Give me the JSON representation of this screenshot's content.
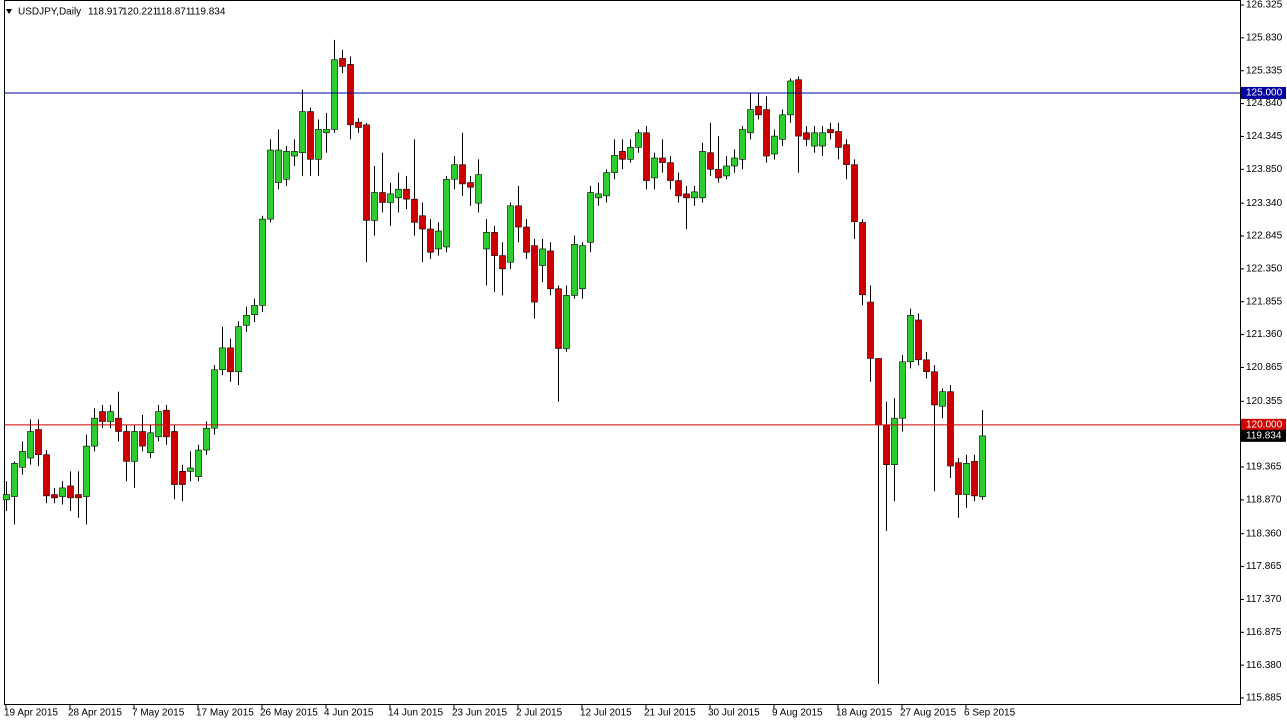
{
  "chart_data": {
    "type": "candlestick",
    "symbol": "USDJPY,Daily",
    "categories": [
      "19 Apr 2015",
      null,
      null,
      null,
      null,
      null,
      null,
      null,
      "28 Apr 2015",
      null,
      null,
      null,
      null,
      null,
      null,
      null,
      "7 May 2015",
      null,
      null,
      null,
      null,
      null,
      null,
      null,
      "17 May 2015",
      null,
      null,
      null,
      null,
      null,
      null,
      null,
      "26 May 2015",
      null,
      null,
      null,
      null,
      null,
      null,
      null,
      "4 Jun 2015",
      null,
      null,
      null,
      null,
      null,
      null,
      null,
      "14 Jun 2015",
      null,
      null,
      null,
      null,
      null,
      null,
      null,
      "23 Jun 2015",
      null,
      null,
      null,
      null,
      null,
      null,
      null,
      "2 Jul 2015",
      null,
      null,
      null,
      null,
      null,
      null,
      null,
      "12 Jul 2015",
      null,
      null,
      null,
      null,
      null,
      null,
      null,
      "21 Jul 2015",
      null,
      null,
      null,
      null,
      null,
      null,
      null,
      "30 Jul 2015",
      null,
      null,
      null,
      null,
      null,
      null,
      null,
      "9 Aug 2015",
      null,
      null,
      null,
      null,
      null,
      null,
      null,
      "18 Aug 2015",
      null,
      null,
      null,
      null,
      null,
      null,
      null,
      "27 Aug 2015",
      null,
      null,
      null,
      null,
      null,
      null,
      null,
      "6 Sep 2015",
      null,
      null
    ],
    "open": [
      118.87,
      118.92,
      119.36,
      119.5,
      119.93,
      119.55,
      118.95,
      118.92,
      119.08,
      118.95,
      118.92,
      119.68,
      120.2,
      120.05,
      120.1,
      119.9,
      119.45,
      119.9,
      119.58,
      119.82,
      120.22,
      119.9,
      119.3,
      119.3,
      119.22,
      119.62,
      119.95,
      120.83,
      121.16,
      120.8,
      121.5,
      121.66,
      121.8,
      123.1,
      123.65,
      123.7,
      124.05,
      124.1,
      124.72,
      124.0,
      124.4,
      124.45,
      125.52,
      125.43,
      124.56,
      124.52,
      123.08,
      123.5,
      123.35,
      123.42,
      123.55,
      123.4,
      123.15,
      122.95,
      122.65,
      122.68,
      123.7,
      123.92,
      123.65,
      123.34,
      122.65,
      122.9,
      122.55,
      122.45,
      123.3,
      122.98,
      122.7,
      122.4,
      122.62,
      122.05,
      121.15,
      121.95,
      122.05,
      122.75,
      123.42,
      123.45,
      123.8,
      124.12,
      124.0,
      124.18,
      124.4,
      123.72,
      124.02,
      123.95,
      123.68,
      123.48,
      123.42,
      123.42,
      124.1,
      123.85,
      123.75,
      123.9,
      124.0,
      124.4,
      124.8,
      124.75,
      124.08,
      124.3,
      124.67,
      125.2,
      124.4,
      124.2,
      124.2,
      124.45,
      124.42,
      124.22,
      123.92,
      123.05,
      121.85,
      121.0,
      120.0,
      119.4,
      120.1,
      120.95,
      121.58,
      120.98,
      120.8,
      120.28,
      120.5,
      119.43,
      118.95,
      119.45,
      118.917
    ],
    "high": [
      119.15,
      119.45,
      119.75,
      120.08,
      120.08,
      119.62,
      119.05,
      119.15,
      119.3,
      119.3,
      119.85,
      120.25,
      120.3,
      120.3,
      120.5,
      120.0,
      120.0,
      120.15,
      120.0,
      120.3,
      120.3,
      120.0,
      119.4,
      119.6,
      119.7,
      120.05,
      120.9,
      121.48,
      121.3,
      121.56,
      121.78,
      121.9,
      123.15,
      124.3,
      124.45,
      124.2,
      124.3,
      125.05,
      124.78,
      124.6,
      124.7,
      125.8,
      125.65,
      125.55,
      124.62,
      124.55,
      123.9,
      124.1,
      123.65,
      123.8,
      123.75,
      124.3,
      123.35,
      123.1,
      123.05,
      123.75,
      124.05,
      124.4,
      123.75,
      124.0,
      123.1,
      123.0,
      122.75,
      123.35,
      123.6,
      123.1,
      122.8,
      122.8,
      122.75,
      122.1,
      122.1,
      122.85,
      122.75,
      123.6,
      123.65,
      123.85,
      124.3,
      124.3,
      124.3,
      124.45,
      124.5,
      124.1,
      124.3,
      124.05,
      123.8,
      123.6,
      123.6,
      124.25,
      124.55,
      124.35,
      124.05,
      124.15,
      124.5,
      125.0,
      125.0,
      124.95,
      124.45,
      124.75,
      125.22,
      125.25,
      124.5,
      124.5,
      124.5,
      124.55,
      124.55,
      124.3,
      124.0,
      123.1,
      122.1,
      121.0,
      120.35,
      120.4,
      121.05,
      121.75,
      121.68,
      121.1,
      120.9,
      120.55,
      120.6,
      119.5,
      119.55,
      119.55,
      120.221
    ],
    "low": [
      118.7,
      118.5,
      119.25,
      119.4,
      119.38,
      118.82,
      118.82,
      118.8,
      118.7,
      118.6,
      118.5,
      119.6,
      119.95,
      119.95,
      119.75,
      119.15,
      119.05,
      119.6,
      119.5,
      119.75,
      119.7,
      118.88,
      118.85,
      119.15,
      119.15,
      119.55,
      119.85,
      120.75,
      120.65,
      120.6,
      121.4,
      121.55,
      121.7,
      123.05,
      123.55,
      123.6,
      123.9,
      123.75,
      123.75,
      123.75,
      124.1,
      124.4,
      125.3,
      124.3,
      124.4,
      122.45,
      122.85,
      123.2,
      123.0,
      123.2,
      123.25,
      122.85,
      122.45,
      122.5,
      122.55,
      122.6,
      123.55,
      123.45,
      123.3,
      123.2,
      122.1,
      122.0,
      121.95,
      122.35,
      122.75,
      122.5,
      121.6,
      122.15,
      121.95,
      120.35,
      121.1,
      121.9,
      121.9,
      122.6,
      123.3,
      123.35,
      123.7,
      123.85,
      123.95,
      124.1,
      123.55,
      123.55,
      123.8,
      123.55,
      123.35,
      122.95,
      123.3,
      123.35,
      123.75,
      123.65,
      123.7,
      123.8,
      123.85,
      124.3,
      124.6,
      123.95,
      124.0,
      124.2,
      124.55,
      123.8,
      124.2,
      124.1,
      124.05,
      124.3,
      124.0,
      123.7,
      122.8,
      121.8,
      120.65,
      116.1,
      118.4,
      118.85,
      119.9,
      120.85,
      120.9,
      120.7,
      119.0,
      120.1,
      119.2,
      118.6,
      118.75,
      118.85,
      118.871
    ],
    "close": [
      118.95,
      119.42,
      119.6,
      119.9,
      119.55,
      118.93,
      118.9,
      119.05,
      118.9,
      118.9,
      119.68,
      120.1,
      120.05,
      120.2,
      119.9,
      119.45,
      119.9,
      119.68,
      119.88,
      120.2,
      119.82,
      119.1,
      119.1,
      119.35,
      119.62,
      119.95,
      120.83,
      121.16,
      120.8,
      121.48,
      121.65,
      121.8,
      123.1,
      124.14,
      124.14,
      124.12,
      124.12,
      124.72,
      124.0,
      124.45,
      124.45,
      125.5,
      125.4,
      124.52,
      124.48,
      123.08,
      123.5,
      123.35,
      123.48,
      123.55,
      123.4,
      123.05,
      122.95,
      122.6,
      122.92,
      123.7,
      123.92,
      123.63,
      123.58,
      123.77,
      122.9,
      122.55,
      122.35,
      123.3,
      122.98,
      122.6,
      121.85,
      122.65,
      122.05,
      121.15,
      121.95,
      122.72,
      122.7,
      123.5,
      123.48,
      123.8,
      124.06,
      124.0,
      124.18,
      124.4,
      123.68,
      124.02,
      123.95,
      123.68,
      123.45,
      123.42,
      123.51,
      124.12,
      123.85,
      123.72,
      123.9,
      124.02,
      124.45,
      124.75,
      124.67,
      124.05,
      124.35,
      124.67,
      125.18,
      124.35,
      124.3,
      124.4,
      124.4,
      124.4,
      124.18,
      123.92,
      123.06,
      121.96,
      121.0,
      120.0,
      119.4,
      120.1,
      120.95,
      121.65,
      120.98,
      120.8,
      120.3,
      120.5,
      119.38,
      118.95,
      119.42,
      118.93,
      119.834
    ],
    "up_color": "#2ecc2e",
    "down_color": "#cc0000",
    "ylim": [
      115.885,
      126.325
    ],
    "yticks": [
      126.325,
      {
        "value": 125.83,
        "label": "125.830"
      },
      125.335,
      {
        "value": 124.84,
        "label": "124.840"
      },
      124.345,
      {
        "value": 123.85,
        "label": "123.850"
      },
      {
        "value": 123.34,
        "label": "123.340"
      },
      122.845,
      {
        "value": 122.35,
        "label": "122.350"
      },
      121.855,
      {
        "value": 121.36,
        "label": "121.360"
      },
      120.865,
      120.355,
      119.365,
      {
        "value": 118.87,
        "label": "118.870"
      },
      {
        "value": 118.36,
        "label": "118.360"
      },
      117.865,
      {
        "value": 117.37,
        "label": "117.370"
      },
      116.875,
      {
        "value": 116.38,
        "label": "116.380"
      },
      115.885
    ],
    "levels": [
      {
        "value": 125,
        "label": "125.000",
        "color": "#0000a0"
      },
      {
        "value": 120,
        "label": "120.000",
        "color": "#d00000"
      }
    ]
  }
}
